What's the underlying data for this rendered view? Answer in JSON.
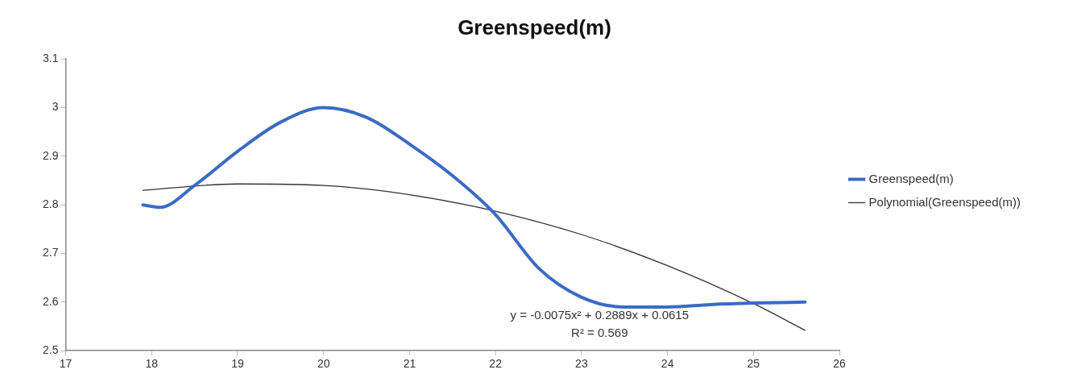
{
  "chart_data": {
    "type": "line",
    "title": "Greenspeed(m)",
    "xlim": [
      17,
      26
    ],
    "xticks": [
      17,
      18,
      19,
      20,
      21,
      22,
      23,
      24,
      25,
      26
    ],
    "ylim": [
      2.5,
      3.1
    ],
    "yticks": [
      2.5,
      2.6,
      2.7,
      2.8,
      2.9,
      3,
      3.1
    ],
    "grid": false,
    "legend": "right",
    "marker": "none",
    "line_style": "solid",
    "series": [
      {
        "name": "Greenspeed(m)",
        "color": "#3a6bc4",
        "x": [
          17.9,
          18.1,
          18.5,
          19,
          19.5,
          20,
          20.5,
          21,
          21.5,
          22,
          22.5,
          23,
          23.5,
          24,
          24.5,
          25,
          25.6
        ],
        "values": [
          2.8,
          2.795,
          2.84,
          2.91,
          2.97,
          3.0,
          2.98,
          2.925,
          2.86,
          2.78,
          2.67,
          2.61,
          2.59,
          2.59,
          2.595,
          2.598,
          2.6
        ]
      },
      {
        "name": "Polynomial(Greenspeed(m))",
        "color": "#333333",
        "x": [
          17.9,
          19,
          20,
          21,
          22,
          23,
          24,
          25,
          25.6
        ],
        "values": [
          2.83,
          2.843,
          2.84,
          2.821,
          2.787,
          2.739,
          2.675,
          2.597,
          2.542
        ]
      }
    ],
    "annotations": [
      "y = -0.0075x² + 0.2889x + 0.0615",
      "R² = 0.569"
    ]
  }
}
